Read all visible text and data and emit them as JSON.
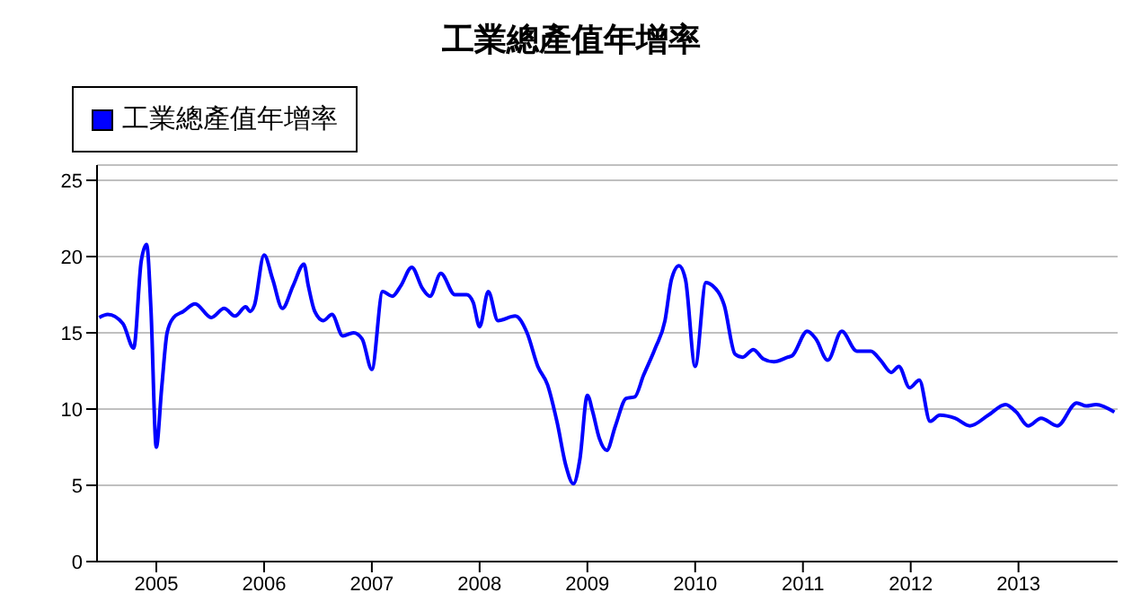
{
  "chart_data": {
    "type": "line",
    "title": "工業總產值年增率",
    "x": [
      2004.47,
      2004.55,
      2004.69,
      2004.79,
      2004.86,
      2004.91,
      2004.95,
      2005.0,
      2005.05,
      2005.1,
      2005.16,
      2005.25,
      2005.36,
      2005.51,
      2005.63,
      2005.73,
      2005.83,
      2005.87,
      2005.91,
      2006.0,
      2006.08,
      2006.17,
      2006.27,
      2006.37,
      2006.41,
      2006.47,
      2006.55,
      2006.63,
      2006.73,
      2006.83,
      2006.91,
      2007.0,
      2007.1,
      2007.19,
      2007.27,
      2007.37,
      2007.47,
      2007.54,
      2007.64,
      2007.77,
      2007.88,
      2007.94,
      2008.0,
      2008.08,
      2008.17,
      2008.33,
      2008.44,
      2008.54,
      2008.63,
      2008.72,
      2008.8,
      2008.87,
      2008.93,
      2009.0,
      2009.05,
      2009.11,
      2009.18,
      2009.26,
      2009.36,
      2009.44,
      2009.52,
      2009.63,
      2009.72,
      2009.78,
      2009.85,
      2009.91,
      2010.0,
      2010.1,
      2010.16,
      2010.27,
      2010.37,
      2010.44,
      2010.54,
      2010.63,
      2010.73,
      2010.86,
      2010.9,
      2011.04,
      2011.12,
      2011.23,
      2011.36,
      2011.5,
      2011.63,
      2011.72,
      2011.82,
      2011.89,
      2011.99,
      2012.08,
      2012.18,
      2012.27,
      2012.41,
      2012.55,
      2012.72,
      2012.88,
      2012.98,
      2013.09,
      2013.21,
      2013.36,
      2013.54,
      2013.63,
      2013.72,
      2013.89
    ],
    "series": [
      {
        "name": "工業總產值年增率",
        "color": "#0000ff",
        "values": [
          16.0,
          16.2,
          15.6,
          14.0,
          19.7,
          20.8,
          16.6,
          7.5,
          11.4,
          15.0,
          16.0,
          16.4,
          16.9,
          16.0,
          16.6,
          16.1,
          16.7,
          16.4,
          16.8,
          20.1,
          18.5,
          16.6,
          18.1,
          19.5,
          18.1,
          16.4,
          15.8,
          16.2,
          14.8,
          15.0,
          14.6,
          12.6,
          17.7,
          17.4,
          18.1,
          19.3,
          17.9,
          17.4,
          18.9,
          17.5,
          17.5,
          17.0,
          15.4,
          17.7,
          15.8,
          16.1,
          15.0,
          12.8,
          11.6,
          9.1,
          6.3,
          5.1,
          6.7,
          10.9,
          9.8,
          8.1,
          7.3,
          8.9,
          10.7,
          10.8,
          12.2,
          14.0,
          15.8,
          18.5,
          19.4,
          18.5,
          12.8,
          18.3,
          18.1,
          16.8,
          13.6,
          13.4,
          13.9,
          13.3,
          13.1,
          13.4,
          13.5,
          15.1,
          14.6,
          13.2,
          15.1,
          13.8,
          13.8,
          13.2,
          12.4,
          12.8,
          11.4,
          11.9,
          9.2,
          9.6,
          9.4,
          8.9,
          9.6,
          10.3,
          9.8,
          8.9,
          9.4,
          8.9,
          10.4,
          10.2,
          10.3,
          9.8
        ]
      }
    ],
    "xlim": [
      2004.45,
      2013.92
    ],
    "xticks": [
      2005,
      2006,
      2007,
      2008,
      2009,
      2010,
      2011,
      2012,
      2013
    ],
    "ylim": [
      0,
      26
    ],
    "yticks": [
      0,
      5,
      10,
      15,
      20,
      25
    ],
    "grid": "y",
    "legend": "top left",
    "marker": "none",
    "line_style": "solid"
  }
}
